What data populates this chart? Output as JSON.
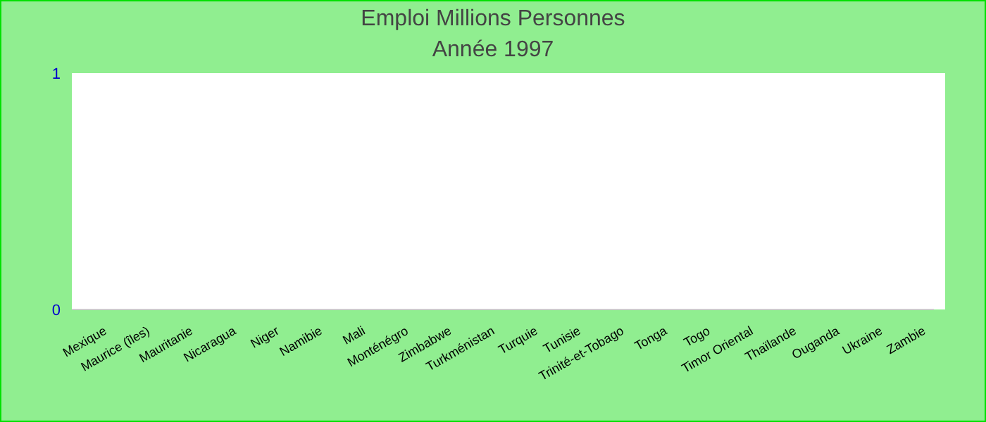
{
  "chart_data": {
    "type": "bar",
    "title": "Emploi Millions Personnes",
    "subtitle": "Année 1997",
    "categories": [
      "Mexique",
      "Maurice (îles)",
      "Mauritanie",
      "Nicaragua",
      "Niger",
      "Namibie",
      "Mali",
      "Monténégro",
      "Zimbabwe",
      "Turkménistan",
      "Turquie",
      "Tunisie",
      "Trinité-et-Tobago",
      "Tonga",
      "Togo",
      "Timor Oriental",
      "Thaïlande",
      "Ouganda",
      "Ukraine",
      "Zambie"
    ],
    "values": [
      null,
      null,
      null,
      null,
      null,
      null,
      null,
      null,
      null,
      null,
      null,
      null,
      null,
      null,
      null,
      null,
      null,
      null,
      null,
      null
    ],
    "ylim": [
      0,
      1
    ],
    "yticks": [
      0,
      1
    ],
    "grid": false,
    "legend": false
  }
}
